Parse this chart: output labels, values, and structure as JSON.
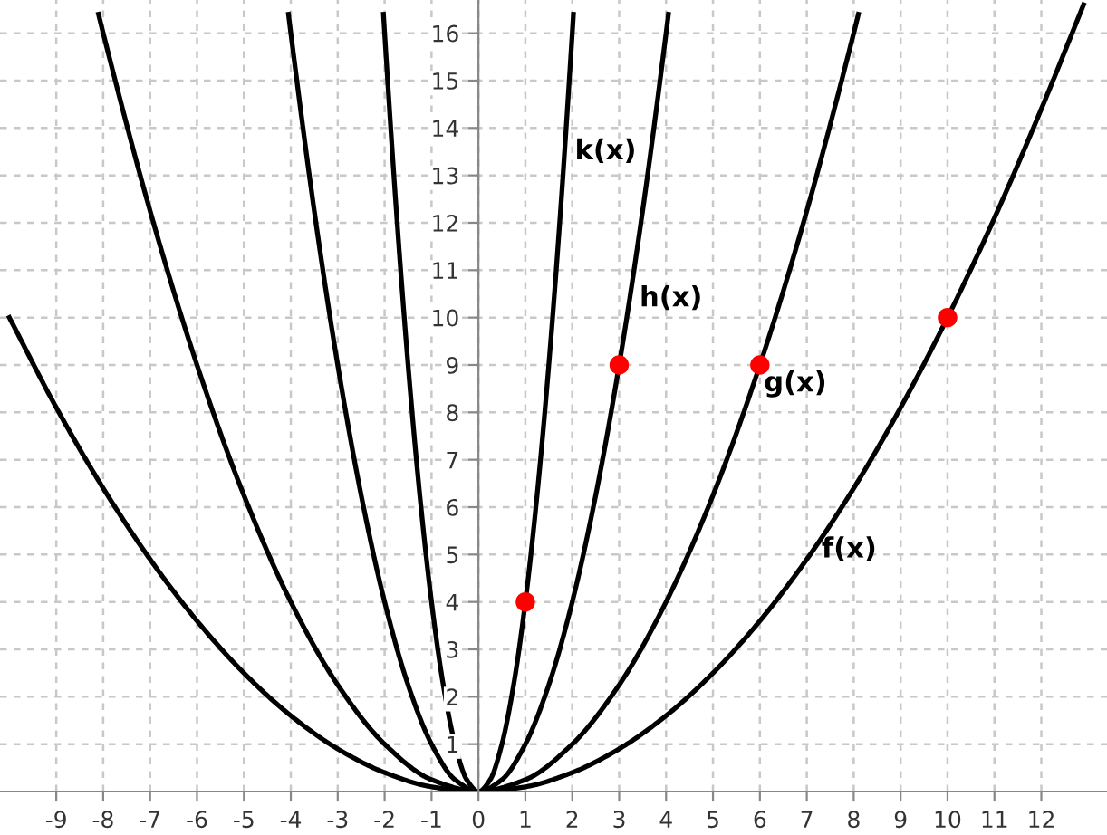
{
  "chart_data": {
    "type": "line",
    "series": [
      {
        "color": "#000000",
        "x": [
          -10,
          -9,
          -8,
          -7,
          -6,
          -5,
          -4,
          -3,
          -2,
          -1,
          0,
          1,
          2,
          3,
          4,
          5,
          6,
          7,
          8,
          9,
          10,
          11,
          12,
          12.9
        ],
        "values": [
          10,
          8.1,
          6.4,
          4.9,
          3.6,
          2.5,
          1.6,
          0.9,
          0.4,
          0.1,
          0,
          0.1,
          0.4,
          0.9,
          1.6,
          2.5,
          3.6,
          4.9,
          6.4,
          8.1,
          10,
          12.1,
          14.4,
          16.6
        ]
      },
      {
        "color": "#000000",
        "x": [
          -8.1,
          -8,
          -7,
          -6,
          -5,
          -4,
          -3,
          -2,
          -1,
          0,
          1,
          2,
          3,
          4,
          5,
          6,
          7,
          8,
          8.1
        ],
        "values": [
          16.4,
          16,
          12.25,
          9,
          6.25,
          4,
          2.25,
          1,
          0.25,
          0,
          0.25,
          1,
          2.25,
          4,
          6.25,
          9,
          12.25,
          16,
          16.4
        ]
      },
      {
        "color": "#000000",
        "x": [
          -4.05,
          -4,
          -3.5,
          -3,
          -2.5,
          -2,
          -1.5,
          -1,
          -0.5,
          0,
          0.5,
          1,
          1.5,
          2,
          2.5,
          3,
          3.5,
          4,
          4.05
        ],
        "values": [
          16.4,
          16,
          12.25,
          9,
          6.25,
          4,
          2.25,
          1,
          0.25,
          0,
          0.25,
          1,
          2.25,
          4,
          6.25,
          9,
          12.25,
          16,
          16.4
        ]
      },
      {
        "color": "#000000",
        "x": [
          -2.025,
          -2,
          -1.75,
          -1.5,
          -1.25,
          -1,
          -0.75,
          -0.5,
          -0.25,
          0,
          0.25,
          0.5,
          0.75,
          1,
          1.25,
          1.5,
          1.75,
          2,
          2.025
        ],
        "values": [
          16.4,
          16,
          12.25,
          9,
          6.25,
          4,
          2.25,
          1,
          0.25,
          0,
          0.25,
          1,
          2.25,
          4,
          6.25,
          9,
          12.25,
          16,
          16.4
        ]
      },
      {
        "type": "scatter",
        "marker": "circle",
        "color": "#ff0000",
        "x": [
          1,
          3,
          6,
          10
        ],
        "values": [
          4,
          9,
          9,
          10
        ]
      }
    ],
    "annotations": [
      {
        "text": "k(x)",
        "x": 1.84,
        "y": 13.5
      },
      {
        "text": "h(x)",
        "x": 3.22,
        "y": 10.4
      },
      {
        "text": "g(x)",
        "x": 5.87,
        "y": 8.6
      },
      {
        "text": "f(x)",
        "x": 7.1,
        "y": 5.1
      }
    ],
    "xlim": [
      -10.2,
      13.4
    ],
    "ylim": [
      0,
      16.7
    ],
    "xticks": [
      -9,
      -8,
      -7,
      -6,
      -5,
      -4,
      -3,
      -2,
      -1,
      0,
      1,
      2,
      3,
      4,
      5,
      6,
      7,
      8,
      9,
      10,
      11,
      12
    ],
    "yticks": [
      1,
      2,
      3,
      4,
      5,
      6,
      7,
      8,
      9,
      10,
      11,
      12,
      13,
      14,
      15,
      16
    ],
    "grid": true,
    "line_style": "solid"
  }
}
